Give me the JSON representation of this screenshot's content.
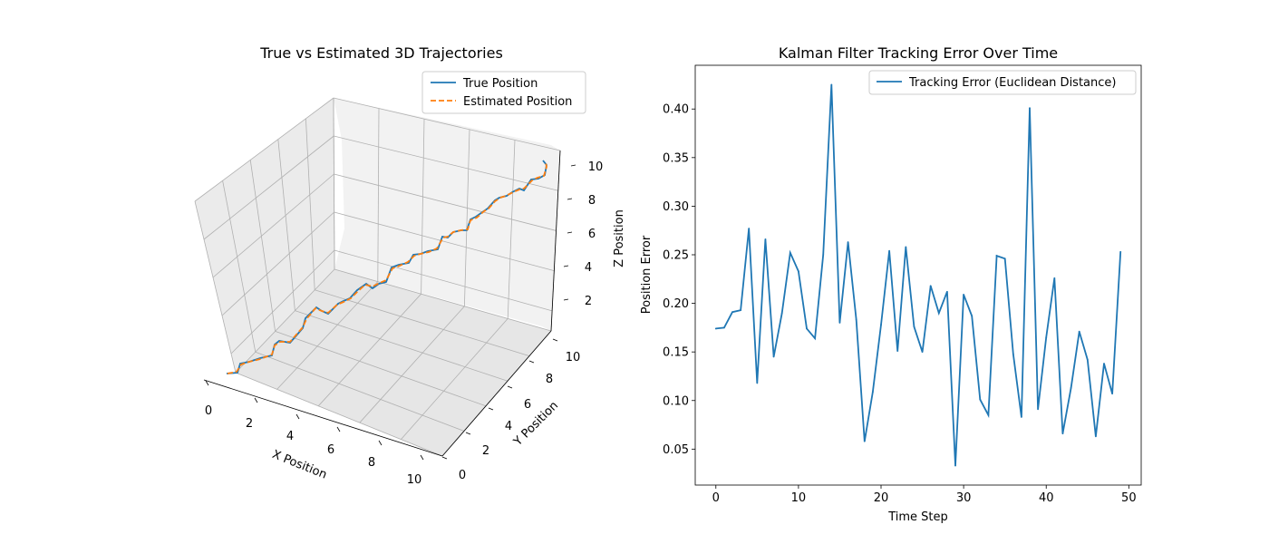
{
  "chart_data": [
    {
      "type": "line3d",
      "title": "True vs Estimated 3D Trajectories",
      "xlabel": "X Position",
      "ylabel": "Y Position",
      "zlabel": "Z Position",
      "xlim": [
        0,
        10
      ],
      "ylim": [
        0,
        10
      ],
      "zlim": [
        1,
        10
      ],
      "xticks": [
        0,
        2,
        4,
        6,
        8,
        10
      ],
      "yticks": [
        0,
        2,
        4,
        6,
        8,
        10
      ],
      "zticks": [
        2,
        4,
        6,
        8,
        10
      ],
      "grid": true,
      "legend": "upper right",
      "series": [
        {
          "name": "True Position",
          "color": "#1f77b4",
          "style": "solid"
        },
        {
          "name": "Estimated Position",
          "color": "#ff7f0e",
          "style": "dashed"
        }
      ]
    },
    {
      "type": "line",
      "title": "Kalman Filter Tracking Error Over Time",
      "xlabel": "Time Step",
      "ylabel": "Position Error",
      "xlim": [
        -2.5,
        51.5
      ],
      "ylim": [
        0.013,
        0.445
      ],
      "xticks": [
        0,
        10,
        20,
        30,
        40,
        50
      ],
      "yticks": [
        "0.05",
        "0.10",
        "0.15",
        "0.20",
        "0.25",
        "0.30",
        "0.35",
        "0.40"
      ],
      "legend": "upper right",
      "series": [
        {
          "name": "Tracking Error (Euclidean Distance)",
          "color": "#1f77b4",
          "x": [
            0,
            1,
            2,
            3,
            4,
            5,
            6,
            7,
            8,
            9,
            10,
            11,
            12,
            13,
            14,
            15,
            16,
            17,
            18,
            19,
            20,
            21,
            22,
            23,
            24,
            25,
            26,
            27,
            28,
            29,
            30,
            31,
            32,
            33,
            34,
            35,
            36,
            37,
            38,
            39,
            40,
            41,
            42,
            43,
            44,
            45,
            46,
            47,
            48,
            49
          ],
          "values": [
            0.174,
            0.175,
            0.191,
            0.193,
            0.277,
            0.118,
            0.266,
            0.145,
            0.19,
            0.252,
            0.233,
            0.174,
            0.164,
            0.25,
            0.425,
            0.18,
            0.263,
            0.183,
            0.058,
            0.109,
            0.178,
            0.254,
            0.151,
            0.258,
            0.176,
            0.15,
            0.218,
            0.19,
            0.212,
            0.033,
            0.209,
            0.187,
            0.101,
            0.085,
            0.249,
            0.246,
            0.148,
            0.083,
            0.401,
            0.091,
            0.165,
            0.226,
            0.066,
            0.113,
            0.171,
            0.142,
            0.063,
            0.138,
            0.107,
            0.253
          ]
        }
      ]
    }
  ]
}
